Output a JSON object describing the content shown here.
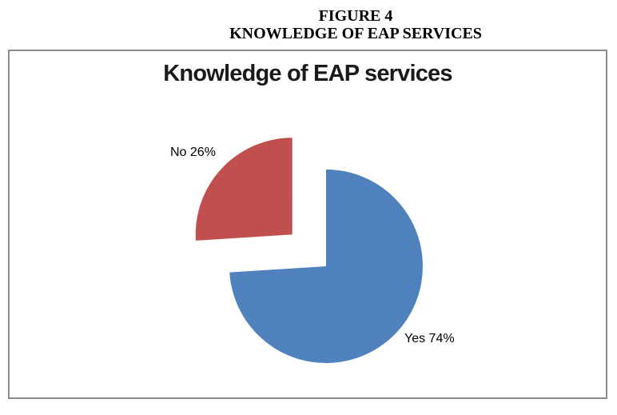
{
  "header": {
    "figure_label": "FIGURE 4",
    "figure_title": "KNOWLEDGE OF EAP SERVICES"
  },
  "chart_data": {
    "type": "pie",
    "title": "Knowledge of EAP services",
    "slices": [
      {
        "label": "Yes",
        "value": 74,
        "percent_label": "Yes 74%",
        "color": "#4F81BD",
        "exploded": false
      },
      {
        "label": "No",
        "value": 26,
        "percent_label": "No 26%",
        "color": "#C0504D",
        "exploded": true
      }
    ],
    "start_angle": "top",
    "direction": "clockwise",
    "legend_position": "none",
    "background_color": "#FFFFFF",
    "box_border_color": "#8C8C8C"
  }
}
